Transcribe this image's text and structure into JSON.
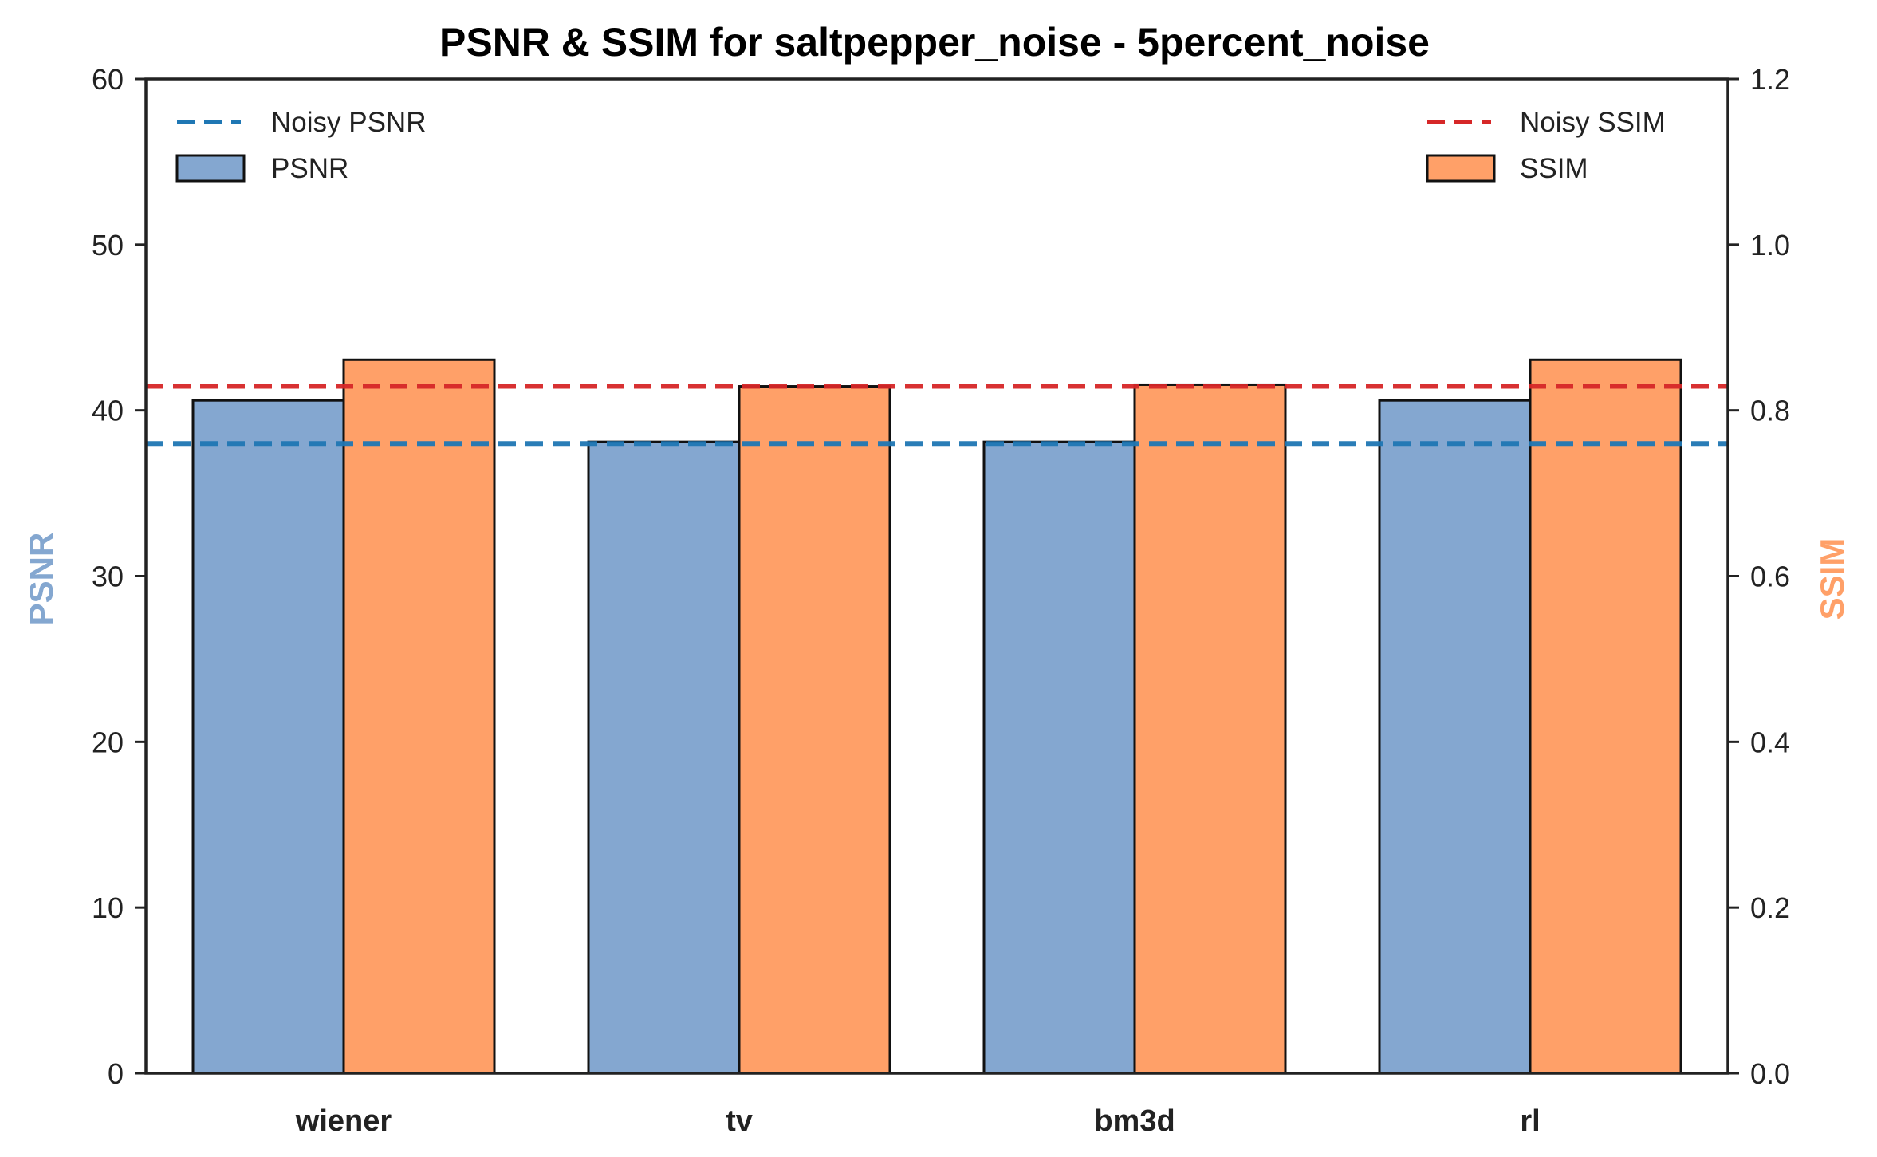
{
  "chart_data": {
    "type": "bar",
    "title": "PSNR & SSIM for saltpepper_noise - 5percent_noise",
    "categories": [
      "wiener",
      "tv",
      "bm3d",
      "rl"
    ],
    "series": [
      {
        "name": "PSNR",
        "axis": "left",
        "values": [
          40.6,
          38.1,
          38.1,
          40.6
        ],
        "color": "#84a7d0"
      },
      {
        "name": "SSIM",
        "axis": "right",
        "values": [
          0.861,
          0.829,
          0.831,
          0.861
        ],
        "color": "#ffa068"
      }
    ],
    "reference_lines": [
      {
        "name": "Noisy PSNR",
        "axis": "left",
        "value": 38.0,
        "color": "#1f77b4",
        "style": "dashed"
      },
      {
        "name": "Noisy SSIM",
        "axis": "right",
        "value": 0.829,
        "color": "#d62728",
        "style": "dashed"
      }
    ],
    "ylabel_left": "PSNR",
    "ylabel_right": "SSIM",
    "ylabel_left_color": "#84a7d0",
    "ylabel_right_color": "#ffa068",
    "ylim_left": [
      0,
      60
    ],
    "ylim_right": [
      0,
      1.2
    ],
    "yticks_left": [
      "0",
      "10",
      "20",
      "30",
      "40",
      "50",
      "60"
    ],
    "yticks_right": [
      "0.0",
      "0.2",
      "0.4",
      "0.6",
      "0.8",
      "1.0",
      "1.2"
    ],
    "grid": false,
    "legend_left": {
      "placement": "top-left",
      "entries": [
        "Noisy PSNR",
        "PSNR"
      ]
    },
    "legend_right": {
      "placement": "top-right",
      "entries": [
        "Noisy SSIM",
        "SSIM"
      ]
    }
  }
}
